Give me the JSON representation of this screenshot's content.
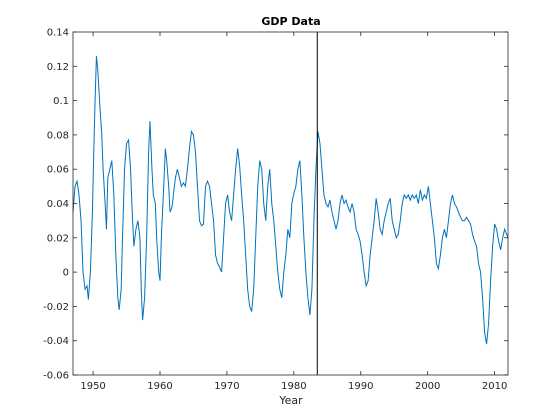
{
  "chart_data": {
    "type": "line",
    "title": "GDP Data",
    "xlabel": "Year",
    "ylabel": "",
    "xlim": [
      1947,
      2012
    ],
    "ylim": [
      -0.06,
      0.14
    ],
    "x_ticks": [
      1950,
      1960,
      1970,
      1980,
      1990,
      2000,
      2010
    ],
    "y_ticks": [
      -0.06,
      -0.04,
      -0.02,
      0,
      0.02,
      0.04,
      0.06,
      0.08,
      0.1,
      0.12,
      0.14
    ],
    "y_tick_labels": [
      "-0.06",
      "-0.04",
      "-0.02",
      "0",
      "0.02",
      "0.04",
      "0.06",
      "0.08",
      "0.1",
      "0.12",
      "0.14"
    ],
    "grid": false,
    "legend": "none",
    "vertical_line_x": 1983.5,
    "colors": {
      "series": "#0072BD",
      "vline": "#000000",
      "axes": "#262626"
    },
    "series": [
      {
        "values": [
          [
            1947.0,
            0.035
          ],
          [
            1947.3,
            0.05
          ],
          [
            1947.6,
            0.053
          ],
          [
            1947.9,
            0.045
          ],
          [
            1948.2,
            0.03
          ],
          [
            1948.5,
            0.0
          ],
          [
            1948.8,
            -0.01
          ],
          [
            1949.1,
            -0.008
          ],
          [
            1949.3,
            -0.016
          ],
          [
            1949.6,
            0.0
          ],
          [
            1949.9,
            0.035
          ],
          [
            1950.1,
            0.07
          ],
          [
            1950.3,
            0.1
          ],
          [
            1950.5,
            0.126
          ],
          [
            1950.7,
            0.118
          ],
          [
            1951.0,
            0.098
          ],
          [
            1951.3,
            0.08
          ],
          [
            1951.5,
            0.06
          ],
          [
            1951.8,
            0.04
          ],
          [
            1952.0,
            0.025
          ],
          [
            1952.2,
            0.055
          ],
          [
            1952.5,
            0.06
          ],
          [
            1952.8,
            0.065
          ],
          [
            1953.1,
            0.045
          ],
          [
            1953.4,
            0.01
          ],
          [
            1953.7,
            -0.015
          ],
          [
            1953.9,
            -0.022
          ],
          [
            1954.2,
            -0.01
          ],
          [
            1954.4,
            0.02
          ],
          [
            1954.7,
            0.06
          ],
          [
            1955.0,
            0.075
          ],
          [
            1955.3,
            0.077
          ],
          [
            1955.6,
            0.06
          ],
          [
            1955.9,
            0.03
          ],
          [
            1956.1,
            0.015
          ],
          [
            1956.4,
            0.025
          ],
          [
            1956.7,
            0.03
          ],
          [
            1957.0,
            0.02
          ],
          [
            1957.2,
            -0.01
          ],
          [
            1957.4,
            -0.028
          ],
          [
            1957.7,
            -0.015
          ],
          [
            1958.0,
            0.02
          ],
          [
            1958.3,
            0.07
          ],
          [
            1958.5,
            0.088
          ],
          [
            1958.8,
            0.06
          ],
          [
            1959.0,
            0.045
          ],
          [
            1959.3,
            0.04
          ],
          [
            1959.5,
            0.02
          ],
          [
            1959.8,
            0.0
          ],
          [
            1960.0,
            -0.005
          ],
          [
            1960.2,
            0.02
          ],
          [
            1960.5,
            0.045
          ],
          [
            1960.8,
            0.072
          ],
          [
            1961.0,
            0.065
          ],
          [
            1961.3,
            0.05
          ],
          [
            1961.5,
            0.035
          ],
          [
            1961.8,
            0.038
          ],
          [
            1962.0,
            0.045
          ],
          [
            1962.3,
            0.055
          ],
          [
            1962.6,
            0.06
          ],
          [
            1962.9,
            0.055
          ],
          [
            1963.2,
            0.05
          ],
          [
            1963.5,
            0.052
          ],
          [
            1963.8,
            0.05
          ],
          [
            1964.1,
            0.06
          ],
          [
            1964.4,
            0.072
          ],
          [
            1964.7,
            0.082
          ],
          [
            1965.0,
            0.08
          ],
          [
            1965.3,
            0.07
          ],
          [
            1965.6,
            0.05
          ],
          [
            1965.9,
            0.03
          ],
          [
            1966.2,
            0.027
          ],
          [
            1966.5,
            0.028
          ],
          [
            1966.8,
            0.05
          ],
          [
            1967.1,
            0.053
          ],
          [
            1967.4,
            0.05
          ],
          [
            1967.7,
            0.04
          ],
          [
            1968.0,
            0.03
          ],
          [
            1968.3,
            0.01
          ],
          [
            1968.6,
            0.005
          ],
          [
            1968.9,
            0.003
          ],
          [
            1969.2,
            0.0
          ],
          [
            1969.5,
            0.02
          ],
          [
            1969.8,
            0.04
          ],
          [
            1970.1,
            0.045
          ],
          [
            1970.4,
            0.035
          ],
          [
            1970.7,
            0.03
          ],
          [
            1971.0,
            0.045
          ],
          [
            1971.3,
            0.06
          ],
          [
            1971.6,
            0.072
          ],
          [
            1971.9,
            0.062
          ],
          [
            1972.2,
            0.045
          ],
          [
            1972.5,
            0.03
          ],
          [
            1972.8,
            0.01
          ],
          [
            1973.1,
            -0.01
          ],
          [
            1973.4,
            -0.02
          ],
          [
            1973.7,
            -0.023
          ],
          [
            1974.0,
            -0.01
          ],
          [
            1974.3,
            0.02
          ],
          [
            1974.6,
            0.05
          ],
          [
            1974.9,
            0.065
          ],
          [
            1975.2,
            0.06
          ],
          [
            1975.5,
            0.04
          ],
          [
            1975.8,
            0.03
          ],
          [
            1976.1,
            0.05
          ],
          [
            1976.4,
            0.06
          ],
          [
            1976.7,
            0.04
          ],
          [
            1977.0,
            0.03
          ],
          [
            1977.3,
            0.015
          ],
          [
            1977.6,
            0.0
          ],
          [
            1977.9,
            -0.01
          ],
          [
            1978.2,
            -0.015
          ],
          [
            1978.5,
            0.0
          ],
          [
            1978.8,
            0.01
          ],
          [
            1979.1,
            0.025
          ],
          [
            1979.4,
            0.02
          ],
          [
            1979.7,
            0.04
          ],
          [
            1980.0,
            0.046
          ],
          [
            1980.3,
            0.05
          ],
          [
            1980.6,
            0.06
          ],
          [
            1980.9,
            0.065
          ],
          [
            1981.2,
            0.045
          ],
          [
            1981.5,
            0.02
          ],
          [
            1981.8,
            0.0
          ],
          [
            1982.1,
            -0.015
          ],
          [
            1982.4,
            -0.025
          ],
          [
            1982.7,
            -0.01
          ],
          [
            1983.0,
            0.03
          ],
          [
            1983.3,
            0.06
          ],
          [
            1983.6,
            0.082
          ],
          [
            1983.9,
            0.075
          ],
          [
            1984.2,
            0.06
          ],
          [
            1984.5,
            0.045
          ],
          [
            1984.8,
            0.04
          ],
          [
            1985.1,
            0.038
          ],
          [
            1985.4,
            0.042
          ],
          [
            1985.7,
            0.035
          ],
          [
            1986.0,
            0.03
          ],
          [
            1986.3,
            0.025
          ],
          [
            1986.6,
            0.03
          ],
          [
            1986.9,
            0.04
          ],
          [
            1987.2,
            0.045
          ],
          [
            1987.5,
            0.04
          ],
          [
            1987.8,
            0.042
          ],
          [
            1988.1,
            0.038
          ],
          [
            1988.4,
            0.035
          ],
          [
            1988.7,
            0.04
          ],
          [
            1989.0,
            0.035
          ],
          [
            1989.3,
            0.025
          ],
          [
            1989.6,
            0.022
          ],
          [
            1989.9,
            0.018
          ],
          [
            1990.2,
            0.01
          ],
          [
            1990.5,
            0.0
          ],
          [
            1990.8,
            -0.008
          ],
          [
            1991.1,
            -0.005
          ],
          [
            1991.4,
            0.01
          ],
          [
            1991.7,
            0.02
          ],
          [
            1992.0,
            0.03
          ],
          [
            1992.3,
            0.043
          ],
          [
            1992.6,
            0.035
          ],
          [
            1992.9,
            0.025
          ],
          [
            1993.2,
            0.022
          ],
          [
            1993.5,
            0.03
          ],
          [
            1993.8,
            0.035
          ],
          [
            1994.1,
            0.04
          ],
          [
            1994.4,
            0.043
          ],
          [
            1994.7,
            0.03
          ],
          [
            1995.0,
            0.025
          ],
          [
            1995.3,
            0.02
          ],
          [
            1995.6,
            0.022
          ],
          [
            1995.9,
            0.03
          ],
          [
            1996.2,
            0.04
          ],
          [
            1996.5,
            0.045
          ],
          [
            1996.8,
            0.043
          ],
          [
            1997.1,
            0.045
          ],
          [
            1997.4,
            0.042
          ],
          [
            1997.7,
            0.045
          ],
          [
            1998.0,
            0.043
          ],
          [
            1998.3,
            0.045
          ],
          [
            1998.6,
            0.04
          ],
          [
            1998.9,
            0.048
          ],
          [
            1999.2,
            0.042
          ],
          [
            1999.5,
            0.045
          ],
          [
            1999.8,
            0.043
          ],
          [
            2000.1,
            0.05
          ],
          [
            2000.4,
            0.04
          ],
          [
            2000.7,
            0.03
          ],
          [
            2001.0,
            0.02
          ],
          [
            2001.3,
            0.005
          ],
          [
            2001.6,
            0.002
          ],
          [
            2001.9,
            0.01
          ],
          [
            2002.2,
            0.02
          ],
          [
            2002.5,
            0.025
          ],
          [
            2002.8,
            0.02
          ],
          [
            2003.1,
            0.03
          ],
          [
            2003.4,
            0.04
          ],
          [
            2003.7,
            0.045
          ],
          [
            2004.0,
            0.04
          ],
          [
            2004.3,
            0.038
          ],
          [
            2004.6,
            0.035
          ],
          [
            2004.9,
            0.032
          ],
          [
            2005.2,
            0.03
          ],
          [
            2005.5,
            0.03
          ],
          [
            2005.8,
            0.032
          ],
          [
            2006.1,
            0.03
          ],
          [
            2006.4,
            0.028
          ],
          [
            2006.7,
            0.022
          ],
          [
            2007.0,
            0.018
          ],
          [
            2007.3,
            0.015
          ],
          [
            2007.6,
            0.005
          ],
          [
            2007.9,
            0.0
          ],
          [
            2008.2,
            -0.015
          ],
          [
            2008.5,
            -0.035
          ],
          [
            2008.8,
            -0.042
          ],
          [
            2009.1,
            -0.03
          ],
          [
            2009.4,
            -0.005
          ],
          [
            2009.7,
            0.015
          ],
          [
            2010.0,
            0.028
          ],
          [
            2010.3,
            0.025
          ],
          [
            2010.6,
            0.018
          ],
          [
            2010.9,
            0.013
          ],
          [
            2011.2,
            0.02
          ],
          [
            2011.5,
            0.025
          ],
          [
            2011.8,
            0.022
          ],
          [
            2012.0,
            0.02
          ]
        ]
      }
    ]
  }
}
